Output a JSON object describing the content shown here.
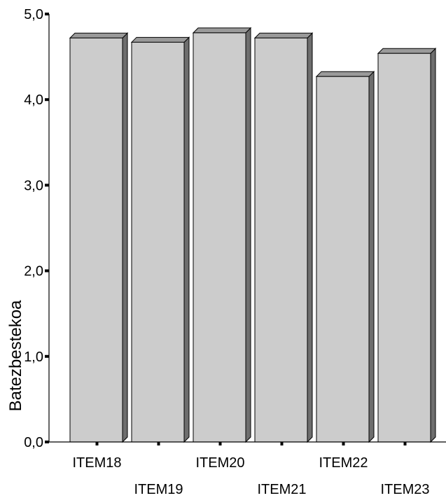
{
  "chart_data": {
    "type": "bar",
    "style": "3d-bar",
    "categories": [
      "ITEM18",
      "ITEM19",
      "ITEM20",
      "ITEM21",
      "ITEM22",
      "ITEM23"
    ],
    "values": [
      4.72,
      4.67,
      4.78,
      4.72,
      4.27,
      4.54
    ],
    "ylabel": "Batezbestekoa",
    "ylim": [
      0,
      5
    ],
    "yticks": [
      "0,0",
      "1,0",
      "2,0",
      "3,0",
      "4,0",
      "5,0"
    ],
    "grid": false,
    "colors": {
      "bar_front": "#cccccc",
      "bar_top": "#9a9a9a",
      "bar_side": "#6e6e6e",
      "outline": "#000000"
    }
  }
}
